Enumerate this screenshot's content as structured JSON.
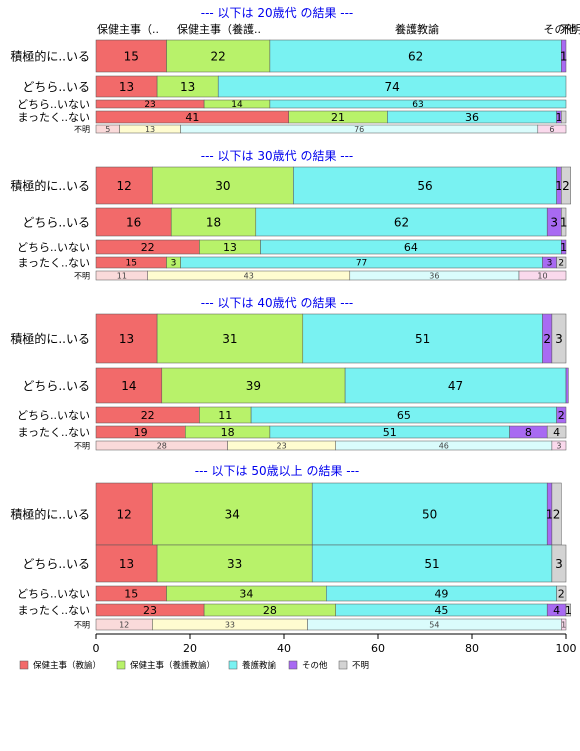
{
  "legend": {
    "placement": "bottom-left",
    "items": [
      {
        "label": "保健主事（教諭）",
        "color": "#f26a6a"
      },
      {
        "label": "保健主事（養護教諭）",
        "color": "#b8f26a"
      },
      {
        "label": "養護教諭",
        "color": "#79f2f2"
      },
      {
        "label": "その他",
        "color": "#a86af2"
      },
      {
        "label": "不明",
        "color": "#d3d3d3"
      }
    ]
  },
  "column_header_labels": [
    "保健主事（..",
    "保健主事（養護..",
    "養護教諭",
    "その他",
    "不明"
  ],
  "chart_data": {
    "type": "bar",
    "orientation": "horizontal",
    "stacked": true,
    "xlim": [
      0,
      100
    ],
    "x_ticks": [
      "0",
      "20",
      "40",
      "60",
      "80",
      "100"
    ],
    "series_names": [
      "保健主事（教諭）",
      "保健主事（養護教諭）",
      "養護教諭",
      "その他",
      "不明"
    ],
    "colors": [
      "#f26a6a",
      "#b8f26a",
      "#79f2f2",
      "#a86af2",
      "#d3d3d3"
    ],
    "unknown_row_colors": [
      "#fadada",
      "#fffcd0",
      "#dafcfc",
      "#eadcfc",
      "#fad9ec"
    ],
    "panels": [
      {
        "title": "--- 以下は 20歳代 の結果 ---",
        "rows": [
          {
            "label": "積極的に..いる",
            "values": [
              15,
              22,
              62,
              1,
              0
            ],
            "text": [
              "15",
              "22",
              "62",
              "1",
              ""
            ]
          },
          {
            "label": "どちら..いる",
            "values": [
              13,
              13,
              74,
              0,
              0
            ],
            "text": [
              "13",
              "13",
              "74",
              "",
              ""
            ]
          },
          {
            "label": "どちら..いない",
            "values": [
              23,
              14,
              63,
              0,
              0
            ],
            "text": [
              "23",
              "14",
              "63",
              "",
              ""
            ]
          },
          {
            "label": "まったく..ない",
            "values": [
              41,
              21,
              36,
              1,
              1
            ],
            "text": [
              "41",
              "21",
              "36",
              "1",
              ""
            ]
          },
          {
            "label": "不明",
            "values": [
              5,
              13,
              76,
              0,
              6
            ],
            "text": [
              "5",
              "13",
              "76",
              "",
              "6"
            ]
          }
        ]
      },
      {
        "title": "--- 以下は 30歳代 の結果 ---",
        "rows": [
          {
            "label": "積極的に..いる",
            "values": [
              12,
              30,
              56,
              1,
              2
            ],
            "text": [
              "12",
              "30",
              "56",
              "1",
              "2"
            ]
          },
          {
            "label": "どちら..いる",
            "values": [
              16,
              18,
              62,
              3,
              1
            ],
            "text": [
              "16",
              "18",
              "62",
              "3",
              "1"
            ]
          },
          {
            "label": "どちら..いない",
            "values": [
              22,
              13,
              64,
              1,
              0
            ],
            "text": [
              "22",
              "13",
              "64",
              "1",
              ""
            ]
          },
          {
            "label": "まったく..ない",
            "values": [
              15,
              3,
              77,
              3,
              2
            ],
            "text": [
              "15",
              "3",
              "77",
              "3",
              "2"
            ]
          },
          {
            "label": "不明",
            "values": [
              11,
              43,
              36,
              0,
              10
            ],
            "text": [
              "11",
              "43",
              "36",
              "",
              "10"
            ]
          }
        ]
      },
      {
        "title": "--- 以下は 40歳代 の結果 ---",
        "rows": [
          {
            "label": "積極的に..いる",
            "values": [
              13,
              31,
              51,
              2,
              3
            ],
            "text": [
              "13",
              "31",
              "51",
              "2",
              "3"
            ]
          },
          {
            "label": "どちら..いる",
            "values": [
              14,
              39,
              47,
              0.5,
              0
            ],
            "text": [
              "14",
              "39",
              "47",
              "",
              ""
            ]
          },
          {
            "label": "どちら..いない",
            "values": [
              22,
              11,
              65,
              2,
              0
            ],
            "text": [
              "22",
              "11",
              "65",
              "2",
              ""
            ]
          },
          {
            "label": "まったく..ない",
            "values": [
              19,
              18,
              51,
              8,
              4
            ],
            "text": [
              "19",
              "18",
              "51",
              "8",
              "4"
            ]
          },
          {
            "label": "不明",
            "values": [
              28,
              23,
              46,
              0,
              3
            ],
            "text": [
              "28",
              "23",
              "46",
              "",
              "3"
            ]
          }
        ]
      },
      {
        "title": "--- 以下は 50歳以上 の結果 ---",
        "rows": [
          {
            "label": "積極的に..いる",
            "values": [
              12,
              34,
              50,
              1,
              2
            ],
            "text": [
              "12",
              "34",
              "50",
              "1",
              "2"
            ]
          },
          {
            "label": "どちら..いる",
            "values": [
              13,
              33,
              51,
              0,
              3
            ],
            "text": [
              "13",
              "33",
              "51",
              "",
              "3"
            ]
          },
          {
            "label": "どちら..いない",
            "values": [
              15,
              34,
              49,
              0,
              2
            ],
            "text": [
              "15",
              "34",
              "49",
              "",
              "2"
            ]
          },
          {
            "label": "まったく..ない",
            "values": [
              23,
              28,
              45,
              4,
              1
            ],
            "text": [
              "23",
              "28",
              "45",
              "4",
              "1"
            ]
          },
          {
            "label": "不明",
            "values": [
              12,
              33,
              54,
              0,
              1
            ],
            "text": [
              "12",
              "33",
              "54",
              "",
              "1"
            ]
          }
        ]
      }
    ]
  }
}
